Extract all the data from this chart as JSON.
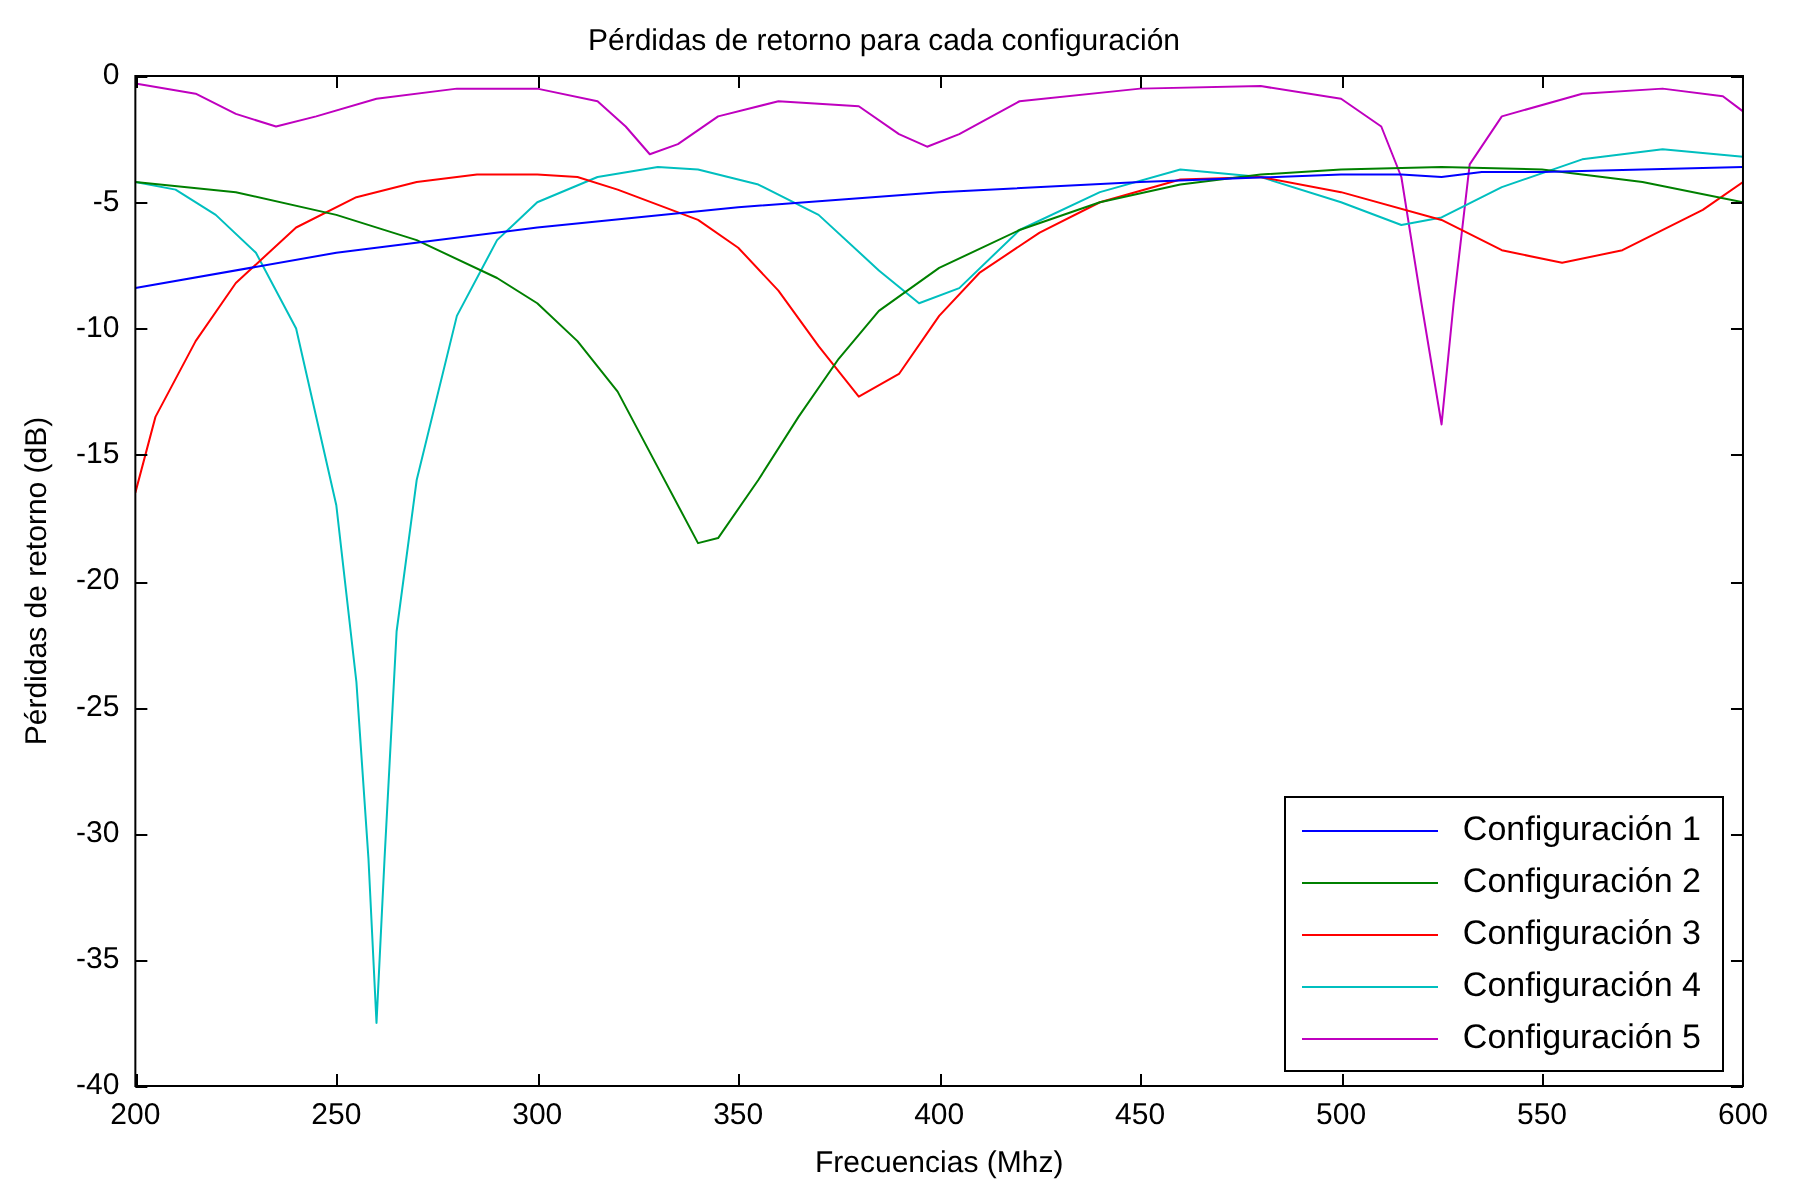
{
  "chart_data": {
    "type": "line",
    "title": "Pérdidas de retorno para cada configuración",
    "xlabel": "Frecuencias (Mhz)",
    "ylabel": "Pérdidas de retorno (dB)",
    "xlim": [
      200,
      600
    ],
    "ylim": [
      -40,
      0
    ],
    "xticks": [
      200,
      250,
      300,
      350,
      400,
      450,
      500,
      550,
      600
    ],
    "yticks": [
      -40,
      -35,
      -30,
      -25,
      -20,
      -15,
      -10,
      -5,
      0
    ],
    "grid": false,
    "legend": "bottom right",
    "marker": "none",
    "line_style": "solid",
    "series": [
      {
        "name": "Configuración 1",
        "color": "#0000ff",
        "x": [
          200,
          250,
          300,
          350,
          400,
          450,
          500,
          515,
          525,
          535,
          550,
          600
        ],
        "values": [
          -8.4,
          -7.0,
          -6.0,
          -5.2,
          -4.6,
          -4.2,
          -3.9,
          -3.9,
          -4.0,
          -3.8,
          -3.8,
          -3.6
        ]
      },
      {
        "name": "Configuración 2",
        "color": "#008000",
        "x": [
          200,
          225,
          250,
          270,
          290,
          300,
          310,
          320,
          330,
          340,
          345,
          355,
          365,
          375,
          385,
          400,
          420,
          440,
          460,
          480,
          500,
          525,
          550,
          575,
          600
        ],
        "values": [
          -4.2,
          -4.6,
          -5.5,
          -6.5,
          -8.0,
          -9.0,
          -10.5,
          -12.5,
          -15.5,
          -18.5,
          -18.3,
          -16.0,
          -13.5,
          -11.2,
          -9.3,
          -7.6,
          -6.1,
          -5.0,
          -4.3,
          -3.9,
          -3.7,
          -3.6,
          -3.7,
          -4.2,
          -5.0
        ]
      },
      {
        "name": "Configuración 3",
        "color": "#ff0000",
        "x": [
          200,
          205,
          215,
          225,
          240,
          255,
          270,
          285,
          300,
          310,
          320,
          340,
          350,
          360,
          370,
          380,
          390,
          400,
          410,
          425,
          440,
          460,
          480,
          500,
          525,
          540,
          555,
          570,
          590,
          600
        ],
        "values": [
          -16.5,
          -13.5,
          -10.5,
          -8.2,
          -6.0,
          -4.8,
          -4.2,
          -3.9,
          -3.9,
          -4.0,
          -4.5,
          -5.7,
          -6.8,
          -8.5,
          -10.7,
          -12.7,
          -11.8,
          -9.5,
          -7.8,
          -6.2,
          -5.0,
          -4.1,
          -4.0,
          -4.6,
          -5.7,
          -6.9,
          -7.4,
          -6.9,
          -5.3,
          -4.2
        ]
      },
      {
        "name": "Configuración 4",
        "color": "#00bfbf",
        "x": [
          200,
          210,
          220,
          230,
          240,
          250,
          255,
          258,
          260,
          262,
          265,
          270,
          280,
          290,
          300,
          315,
          330,
          340,
          355,
          370,
          385,
          395,
          405,
          420,
          440,
          460,
          480,
          500,
          515,
          525,
          540,
          560,
          580,
          600
        ],
        "values": [
          -4.2,
          -4.5,
          -5.5,
          -7.0,
          -10.0,
          -17.0,
          -24.0,
          -31.0,
          -37.5,
          -31.0,
          -22.0,
          -16.0,
          -9.5,
          -6.5,
          -5.0,
          -4.0,
          -3.6,
          -3.7,
          -4.3,
          -5.5,
          -7.7,
          -9.0,
          -8.4,
          -6.1,
          -4.6,
          -3.7,
          -4.0,
          -5.0,
          -5.9,
          -5.6,
          -4.4,
          -3.3,
          -2.9,
          -3.2
        ]
      },
      {
        "name": "Configuración 5",
        "color": "#bf00bf",
        "x": [
          200,
          215,
          225,
          235,
          245,
          260,
          280,
          300,
          315,
          322,
          328,
          335,
          345,
          360,
          380,
          390,
          397,
          405,
          420,
          450,
          480,
          500,
          510,
          515,
          520,
          525,
          528,
          532,
          540,
          560,
          580,
          595,
          600
        ],
        "values": [
          -0.3,
          -0.7,
          -1.5,
          -2.0,
          -1.6,
          -0.9,
          -0.5,
          -0.5,
          -1.0,
          -2.0,
          -3.1,
          -2.7,
          -1.6,
          -1.0,
          -1.2,
          -2.3,
          -2.8,
          -2.3,
          -1.0,
          -0.5,
          -0.4,
          -0.9,
          -2.0,
          -4.0,
          -9.0,
          -13.8,
          -9.0,
          -3.5,
          -1.6,
          -0.7,
          -0.5,
          -0.8,
          -1.4
        ]
      }
    ]
  }
}
